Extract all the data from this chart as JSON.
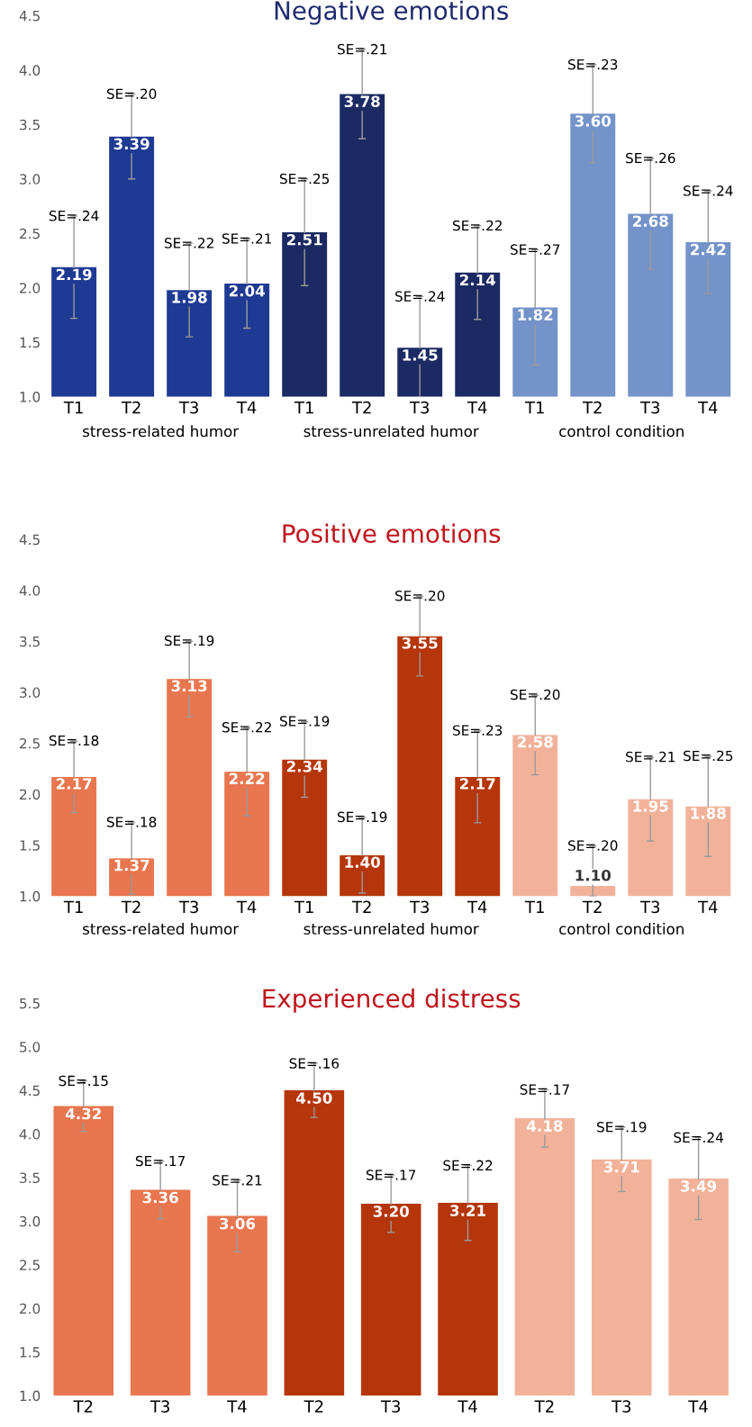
{
  "chart_data": [
    {
      "type": "bar",
      "title": "Negative emotions",
      "categories": [
        "T1",
        "T2",
        "T3",
        "T4",
        "T1",
        "T2",
        "T3",
        "T4",
        "T1",
        "T2",
        "T3",
        "T4"
      ],
      "series": [
        {
          "name": "stress-related humor",
          "color": "#1f3a93",
          "values": [
            2.19,
            3.39,
            1.98,
            2.04,
            null,
            null,
            null,
            null,
            null,
            null,
            null,
            null
          ],
          "value_labels": [
            "2.19",
            "3.39",
            "1.98",
            "2.04",
            null,
            null,
            null,
            null,
            null,
            null,
            null,
            null
          ],
          "errors": [
            0.47,
            0.39,
            0.43,
            0.41,
            null,
            null,
            null,
            null,
            null,
            null,
            null,
            null
          ]
        },
        {
          "name": "stress-unrelated humor",
          "color": "#1b2a63",
          "values": [
            null,
            null,
            null,
            null,
            2.51,
            3.78,
            1.45,
            2.14,
            null,
            null,
            null,
            null
          ],
          "value_labels": [
            null,
            null,
            null,
            null,
            "2.51",
            "3.78",
            "1.45",
            "2.14",
            null,
            null,
            null,
            null
          ],
          "errors": [
            null,
            null,
            null,
            null,
            0.49,
            0.41,
            [
              1.0,
              1.92
            ],
            0.43,
            null,
            null,
            null,
            null
          ]
        },
        {
          "name": "control condition",
          "color": "#7393c9",
          "values": [
            null,
            null,
            null,
            null,
            null,
            null,
            null,
            null,
            1.82,
            3.6,
            2.68,
            2.42
          ],
          "value_labels": [
            null,
            null,
            null,
            null,
            null,
            null,
            null,
            null,
            "1.82",
            "3.60",
            "2.68",
            "2.42"
          ],
          "errors": [
            null,
            null,
            null,
            null,
            null,
            null,
            null,
            null,
            0.53,
            0.45,
            0.51,
            0.47
          ]
        }
      ],
      "annotations": [
        "SE=.24",
        "SE=.20",
        "SE=.22",
        "SE=.21",
        "SE=.25",
        "SE=.21",
        "SE=.24",
        "SE=.22",
        "SE=.27",
        "SE=.23",
        "SE=.26",
        "SE=.24"
      ],
      "ylim": [
        1.0,
        4.5
      ],
      "yticks": [
        {
          "value": 1.0,
          "label": "1.0"
        },
        {
          "value": 1.5,
          "label": "1.5"
        },
        {
          "value": 2.0,
          "label": "2.0"
        },
        {
          "value": 2.5,
          "label": "2.5"
        },
        {
          "value": 3.0,
          "label": "3.0"
        },
        {
          "value": 3.5,
          "label": "3.5"
        },
        {
          "value": 4.0,
          "label": "4.0"
        },
        {
          "value": 4.5,
          "label": "4.5"
        }
      ]
    },
    {
      "type": "bar",
      "title": "Positive emotions",
      "categories": [
        "T1",
        "T2",
        "T3",
        "T4",
        "T1",
        "T2",
        "T3",
        "T4",
        "T1",
        "T2",
        "T3",
        "T4"
      ],
      "series": [
        {
          "name": "stress-related humor",
          "color": "#e8764f",
          "values": [
            2.17,
            1.37,
            3.13,
            2.22,
            null,
            null,
            null,
            null,
            null,
            null,
            null,
            null
          ],
          "value_labels": [
            "2.17",
            "1.37",
            "3.13",
            "2.22",
            null,
            null,
            null,
            null,
            null,
            null,
            null,
            null
          ],
          "errors": [
            0.35,
            0.35,
            0.37,
            0.43,
            null,
            null,
            null,
            null,
            null,
            null,
            null,
            null
          ]
        },
        {
          "name": "stress-unrelated humor",
          "color": "#b5360a",
          "values": [
            null,
            null,
            null,
            null,
            2.34,
            1.4,
            3.55,
            2.17,
            null,
            null,
            null,
            null
          ],
          "value_labels": [
            null,
            null,
            null,
            null,
            "2.34",
            "1.40",
            "3.55",
            "2.17",
            null,
            null,
            null,
            null
          ],
          "errors": [
            null,
            null,
            null,
            null,
            0.37,
            0.37,
            0.39,
            0.45,
            null,
            null,
            null,
            null
          ]
        },
        {
          "name": "control condition",
          "color": "#f2b29a",
          "values": [
            null,
            null,
            null,
            null,
            null,
            null,
            null,
            null,
            2.58,
            1.1,
            1.95,
            1.88
          ],
          "value_labels": [
            null,
            null,
            null,
            null,
            null,
            null,
            null,
            null,
            "2.58",
            "1.10",
            "1.95",
            "1.88"
          ],
          "errors": [
            null,
            null,
            null,
            null,
            null,
            null,
            null,
            null,
            0.39,
            [
              1.0,
              1.49
            ],
            0.41,
            0.49
          ]
        }
      ],
      "annotations": [
        "SE=.18",
        "SE=.18",
        "SE=.19",
        "SE=.22",
        "SE=.19",
        "SE=.19",
        "SE=.20",
        "SE=.23",
        "SE=.20",
        "SE=.20",
        "SE=.21",
        "SE=.25"
      ],
      "ylim": [
        1.0,
        4.5
      ],
      "yticks": [
        {
          "value": 1.0,
          "label": "1.0"
        },
        {
          "value": 1.5,
          "label": "1.5"
        },
        {
          "value": 2.0,
          "label": "2.0"
        },
        {
          "value": 2.5,
          "label": "2.5"
        },
        {
          "value": 3.0,
          "label": "3.0"
        },
        {
          "value": 3.5,
          "label": "3.5"
        },
        {
          "value": 4.0,
          "label": "4.0"
        },
        {
          "value": 4.5,
          "label": "4.5"
        }
      ]
    },
    {
      "type": "bar",
      "title": "Experienced distress",
      "categories": [
        "T2",
        "T3",
        "T4",
        "T2",
        "T3",
        "T4",
        "T2",
        "T3",
        "T4"
      ],
      "series": [
        {
          "color": "#e8764f",
          "values": [
            4.32,
            3.36,
            3.06,
            null,
            null,
            null,
            null,
            null,
            null
          ],
          "value_labels": [
            "4.32",
            "3.36",
            "3.06",
            null,
            null,
            null,
            null,
            null,
            null
          ],
          "errors": [
            0.29,
            0.33,
            0.41,
            null,
            null,
            null,
            null,
            null,
            null
          ]
        },
        {
          "color": "#b5360a",
          "values": [
            null,
            null,
            null,
            4.5,
            3.2,
            3.21,
            null,
            null,
            null
          ],
          "value_labels": [
            null,
            null,
            null,
            "4.50",
            "3.20",
            "3.21",
            null,
            null,
            null
          ],
          "errors": [
            null,
            null,
            null,
            0.31,
            0.33,
            0.43,
            null,
            null,
            null
          ]
        },
        {
          "color": "#f2b29a",
          "values": [
            null,
            null,
            null,
            null,
            null,
            null,
            4.18,
            3.71,
            3.49
          ],
          "value_labels": [
            null,
            null,
            null,
            null,
            null,
            null,
            "4.18",
            "3.71",
            "3.49"
          ],
          "errors": [
            null,
            null,
            null,
            null,
            null,
            null,
            0.33,
            0.37,
            0.47
          ]
        }
      ],
      "annotations": [
        "SE=.15",
        "SE=.17",
        "SE=.21",
        "SE=.16",
        "SE=.17",
        "SE=.22",
        "SE=.17",
        "SE=.19",
        "SE=.24"
      ],
      "ylim": [
        1.0,
        5.5
      ],
      "yticks": [
        {
          "value": 1.0,
          "label": "1.0"
        },
        {
          "value": 1.5,
          "label": "1.5"
        },
        {
          "value": 2.0,
          "label": "2.0"
        },
        {
          "value": 2.5,
          "label": "2.5"
        },
        {
          "value": 3.0,
          "label": "3.0"
        },
        {
          "value": 3.5,
          "label": "3.5"
        },
        {
          "value": 4.0,
          "label": "4.0"
        },
        {
          "value": 4.5,
          "label": "4.5"
        },
        {
          "value": 5.0,
          "label": "5.0"
        },
        {
          "value": 5.5,
          "label": "5.5"
        }
      ]
    }
  ]
}
